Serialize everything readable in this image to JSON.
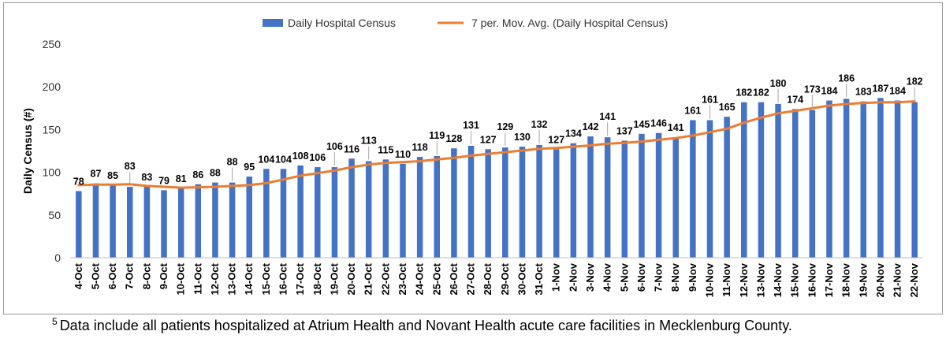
{
  "chart_data": {
    "type": "bar",
    "title": "",
    "xlabel": "",
    "ylabel": "Daily Census (#)",
    "ylim": [
      0,
      250
    ],
    "yticks": [
      0,
      50,
      100,
      150,
      200,
      250
    ],
    "grid": false,
    "legend_position": "top-center",
    "categories": [
      "4-Oct",
      "5-Oct",
      "6-Oct",
      "7-Oct",
      "8-Oct",
      "9-Oct",
      "10-Oct",
      "11-Oct",
      "12-Oct",
      "13-Oct",
      "14-Oct",
      "15-Oct",
      "16-Oct",
      "17-Oct",
      "18-Oct",
      "19-Oct",
      "20-Oct",
      "21-Oct",
      "22-Oct",
      "23-Oct",
      "24-Oct",
      "25-Oct",
      "26-Oct",
      "27-Oct",
      "28-Oct",
      "29-Oct",
      "30-Oct",
      "31-Oct",
      "1-Nov",
      "2-Nov",
      "3-Nov",
      "4-Nov",
      "5-Nov",
      "6-Nov",
      "7-Nov",
      "8-Nov",
      "9-Nov",
      "10-Nov",
      "11-Nov",
      "12-Nov",
      "13-Nov",
      "14-Nov",
      "15-Nov",
      "16-Nov",
      "17-Nov",
      "18-Nov",
      "19-Nov",
      "20-Nov",
      "21-Nov",
      "22-Nov"
    ],
    "series": [
      {
        "name": "Daily Hospital Census",
        "type": "bar",
        "color": "#4472C4",
        "values": [
          78,
          87,
          85,
          83,
          83,
          79,
          81,
          86,
          88,
          88,
          95,
          104,
          104,
          108,
          106,
          106,
          116,
          113,
          115,
          110,
          118,
          119,
          128,
          131,
          127,
          129,
          130,
          132,
          127,
          134,
          142,
          141,
          137,
          145,
          146,
          141,
          161,
          161,
          165,
          182,
          182,
          180,
          174,
          173,
          184,
          186,
          183,
          187,
          184,
          182
        ]
      },
      {
        "name": "7 per. Mov. Avg. (Daily Hospital Census)",
        "type": "line",
        "color": "#ED7D31",
        "values": [
          85,
          85.5,
          85.5,
          86,
          84,
          83,
          82,
          82.5,
          83,
          84,
          85,
          87.5,
          91.5,
          96,
          99,
          102,
          106,
          109,
          111,
          112,
          113,
          115,
          117,
          119.5,
          121.5,
          123.5,
          125.5,
          127.5,
          128.5,
          130,
          131.5,
          133.5,
          134.5,
          136,
          138,
          140,
          143,
          147,
          151,
          158,
          164,
          169,
          172,
          175,
          178,
          180,
          181,
          182,
          182,
          183
        ]
      }
    ]
  },
  "footnote": {
    "marker": "5",
    "text": "Data include all patients hospitalized at Atrium Health and Novant Health acute care facilities in Mecklenburg County."
  }
}
